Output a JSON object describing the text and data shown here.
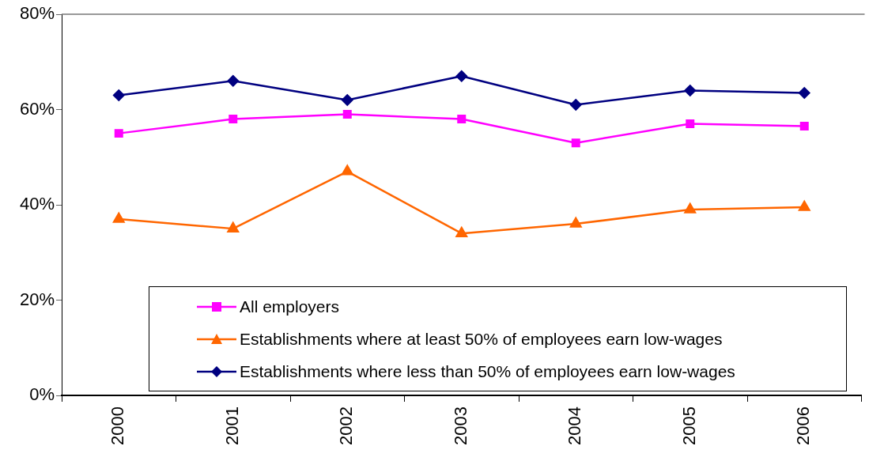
{
  "chart_data": {
    "type": "line",
    "categories": [
      "2000",
      "2001",
      "2002",
      "2003",
      "2004",
      "2005",
      "2006"
    ],
    "series": [
      {
        "name": "All employers",
        "color": "#ff00ff",
        "marker": "square",
        "values": [
          55,
          58,
          59,
          58,
          53,
          57,
          56.5
        ]
      },
      {
        "name": "Establishments where at least 50% of employees earn low-wages",
        "color": "#ff6600",
        "marker": "triangle",
        "values": [
          37,
          35,
          47,
          34,
          36,
          39,
          39.5
        ]
      },
      {
        "name": "Establishments where less than 50% of employees earn low-wages",
        "color": "#000080",
        "marker": "diamond",
        "values": [
          63,
          66,
          62,
          67,
          61,
          64,
          63.5
        ]
      }
    ],
    "ylim": [
      0,
      80
    ],
    "yticks": [
      {
        "value": 0,
        "label": "0%"
      },
      {
        "value": 20,
        "label": "20%"
      },
      {
        "value": 40,
        "label": "40%"
      },
      {
        "value": 60,
        "label": "60%"
      },
      {
        "value": 80,
        "label": "80%"
      }
    ],
    "grid": false,
    "legend": "bottom"
  }
}
